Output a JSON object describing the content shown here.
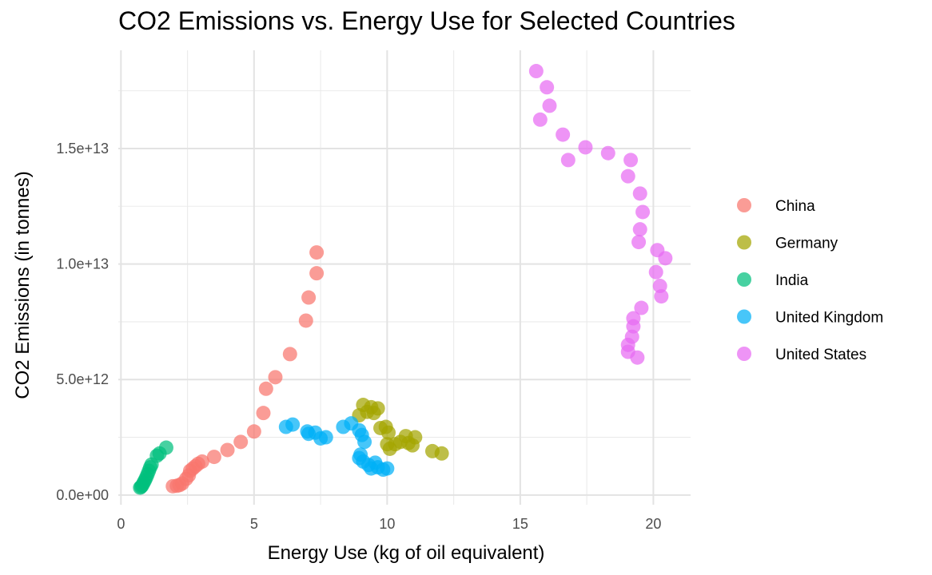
{
  "chart_data": {
    "type": "scatter",
    "title": "CO2 Emissions vs. Energy Use for Selected Countries",
    "xlabel": "Energy Use (kg of oil equivalent)",
    "ylabel": "CO2 Emissions (in tonnes)",
    "xlim": [
      -0.1,
      21.4
    ],
    "ylim": [
      -420000000000.0,
      19250000000000.0
    ],
    "x_ticks": [
      0,
      5,
      10,
      15,
      20
    ],
    "x_tick_labels": [
      "0",
      "5",
      "10",
      "15",
      "20"
    ],
    "y_ticks": [
      0,
      5000000000000.0,
      10000000000000.0,
      15000000000000.0
    ],
    "y_tick_labels": [
      "0.0e+00",
      "5.0e+12",
      "1.0e+13",
      "1.5e+13"
    ],
    "grid": true,
    "legend_position": "right",
    "series": [
      {
        "name": "China",
        "color": "#F8766D",
        "points": [
          [
            1.95,
            380000000000.0
          ],
          [
            2.1,
            400000000000.0
          ],
          [
            2.2,
            430000000000.0
          ],
          [
            2.3,
            500000000000.0
          ],
          [
            2.45,
            700000000000.0
          ],
          [
            2.55,
            850000000000.0
          ],
          [
            2.6,
            1050000000000.0
          ],
          [
            2.7,
            1150000000000.0
          ],
          [
            2.8,
            1250000000000.0
          ],
          [
            2.9,
            1350000000000.0
          ],
          [
            3.05,
            1450000000000.0
          ],
          [
            3.5,
            1650000000000.0
          ],
          [
            4.0,
            1950000000000.0
          ],
          [
            4.5,
            2300000000000.0
          ],
          [
            5.0,
            2750000000000.0
          ],
          [
            5.35,
            3550000000000.0
          ],
          [
            5.45,
            4600000000000.0
          ],
          [
            5.8,
            5100000000000.0
          ],
          [
            6.35,
            6100000000000.0
          ],
          [
            6.95,
            7550000000000.0
          ],
          [
            7.05,
            8550000000000.0
          ],
          [
            7.35,
            9600000000000.0
          ],
          [
            7.35,
            10500000000000.0
          ]
        ]
      },
      {
        "name": "Germany",
        "color": "#A3A500",
        "points": [
          [
            8.95,
            3450000000000.0
          ],
          [
            9.1,
            3900000000000.0
          ],
          [
            9.25,
            3600000000000.0
          ],
          [
            9.4,
            3800000000000.0
          ],
          [
            9.5,
            3550000000000.0
          ],
          [
            9.65,
            3750000000000.0
          ],
          [
            9.75,
            2900000000000.0
          ],
          [
            9.95,
            2950000000000.0
          ],
          [
            10.05,
            2700000000000.0
          ],
          [
            10.0,
            2200000000000.0
          ],
          [
            10.1,
            2000000000000.0
          ],
          [
            10.3,
            2200000000000.0
          ],
          [
            10.5,
            2300000000000.0
          ],
          [
            10.7,
            2550000000000.0
          ],
          [
            10.8,
            2250000000000.0
          ],
          [
            10.95,
            2150000000000.0
          ],
          [
            11.05,
            2500000000000.0
          ],
          [
            11.7,
            1900000000000.0
          ],
          [
            12.05,
            1800000000000.0
          ]
        ]
      },
      {
        "name": "India",
        "color": "#00BF7D",
        "points": [
          [
            0.72,
            320000000000.0
          ],
          [
            0.76,
            360000000000.0
          ],
          [
            0.8,
            420000000000.0
          ],
          [
            0.85,
            530000000000.0
          ],
          [
            0.9,
            640000000000.0
          ],
          [
            0.95,
            760000000000.0
          ],
          [
            1.0,
            900000000000.0
          ],
          [
            1.05,
            1050000000000.0
          ],
          [
            1.1,
            1200000000000.0
          ],
          [
            1.15,
            1320000000000.0
          ],
          [
            1.35,
            1700000000000.0
          ],
          [
            1.45,
            1800000000000.0
          ],
          [
            1.7,
            2050000000000.0
          ]
        ]
      },
      {
        "name": "United Kingdom",
        "color": "#00B0F6",
        "points": [
          [
            6.2,
            2950000000000.0
          ],
          [
            6.45,
            3050000000000.0
          ],
          [
            7.0,
            2750000000000.0
          ],
          [
            7.05,
            2650000000000.0
          ],
          [
            7.3,
            2700000000000.0
          ],
          [
            7.5,
            2450000000000.0
          ],
          [
            7.7,
            2500000000000.0
          ],
          [
            8.35,
            2950000000000.0
          ],
          [
            8.65,
            3100000000000.0
          ],
          [
            8.95,
            2800000000000.0
          ],
          [
            9.05,
            2600000000000.0
          ],
          [
            9.15,
            2300000000000.0
          ],
          [
            9.0,
            1750000000000.0
          ],
          [
            8.95,
            1600000000000.0
          ],
          [
            9.1,
            1450000000000.0
          ],
          [
            9.3,
            1300000000000.0
          ],
          [
            9.4,
            1150000000000.0
          ],
          [
            9.55,
            1400000000000.0
          ],
          [
            9.65,
            1200000000000.0
          ],
          [
            9.85,
            1100000000000.0
          ],
          [
            10.0,
            1150000000000.0
          ]
        ]
      },
      {
        "name": "United States",
        "color": "#E76BF3",
        "points": [
          [
            15.6,
            18350000000000.0
          ],
          [
            15.75,
            16250000000000.0
          ],
          [
            16.0,
            17650000000000.0
          ],
          [
            16.1,
            16850000000000.0
          ],
          [
            16.6,
            15600000000000.0
          ],
          [
            16.8,
            14500000000000.0
          ],
          [
            17.45,
            15050000000000.0
          ],
          [
            18.3,
            14800000000000.0
          ],
          [
            19.05,
            13800000000000.0
          ],
          [
            19.15,
            14500000000000.0
          ],
          [
            19.5,
            13050000000000.0
          ],
          [
            19.6,
            12250000000000.0
          ],
          [
            19.5,
            11500000000000.0
          ],
          [
            19.45,
            10950000000000.0
          ],
          [
            20.15,
            10600000000000.0
          ],
          [
            20.45,
            10250000000000.0
          ],
          [
            20.1,
            9650000000000.0
          ],
          [
            20.25,
            9050000000000.0
          ],
          [
            20.3,
            8600000000000.0
          ],
          [
            19.55,
            8100000000000.0
          ],
          [
            19.25,
            7650000000000.0
          ],
          [
            19.25,
            7300000000000.0
          ],
          [
            19.2,
            6850000000000.0
          ],
          [
            19.05,
            6500000000000.0
          ],
          [
            19.05,
            6200000000000.0
          ],
          [
            19.4,
            5950000000000.0
          ]
        ]
      }
    ]
  }
}
